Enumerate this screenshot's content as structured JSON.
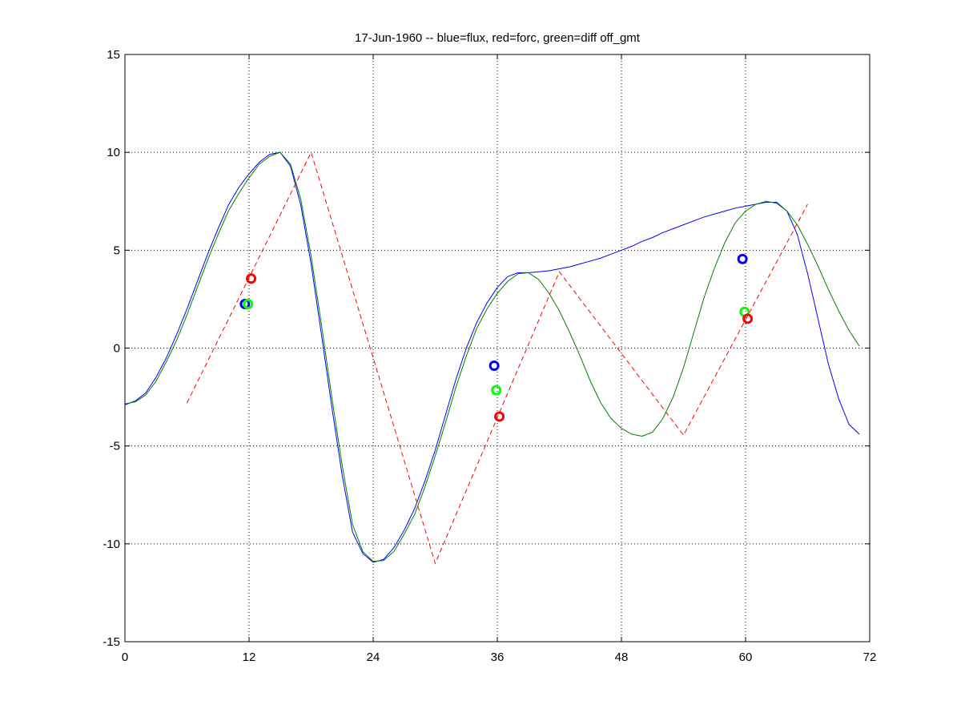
{
  "chart_data": {
    "type": "line",
    "title": "17-Jun-1960 -- blue=flux, red=forc, green=diff off_gmt",
    "xlabel": "",
    "ylabel": "",
    "xlim": [
      0,
      72
    ],
    "ylim": [
      -15,
      15
    ],
    "xticks": [
      0,
      12,
      24,
      36,
      48,
      60,
      72
    ],
    "yticks": [
      -15,
      -10,
      -5,
      0,
      5,
      10,
      15
    ],
    "xtick_labels": [
      "0",
      "12",
      "24",
      "36",
      "48",
      "60",
      "72"
    ],
    "ytick_labels": [
      "-15",
      "-10",
      "-5",
      "0",
      "5",
      "10",
      "15"
    ],
    "grid": true,
    "series": [
      {
        "name": "flux",
        "color": "#0000ff",
        "style": "solid",
        "x": [
          0,
          1,
          2,
          3,
          4,
          5,
          6,
          7,
          8,
          9,
          10,
          11,
          12,
          13,
          14,
          15,
          16,
          17,
          18,
          19,
          20,
          21,
          22,
          23,
          24,
          25,
          26,
          27,
          28,
          29,
          30,
          31,
          32,
          33,
          34,
          35,
          36,
          37,
          38,
          39,
          40,
          41,
          42,
          43,
          44,
          45,
          46,
          47,
          48,
          49,
          50,
          51,
          52,
          53,
          54,
          55,
          56,
          57,
          58,
          59,
          60,
          61,
          62,
          63,
          64,
          65,
          66,
          67,
          68,
          69,
          70,
          71
        ],
        "y": [
          -2.9,
          -2.7,
          -2.3,
          -1.5,
          -0.5,
          0.7,
          2.0,
          3.4,
          4.8,
          6.1,
          7.3,
          8.2,
          8.9,
          9.5,
          9.9,
          10.0,
          9.3,
          7.3,
          4.3,
          0.7,
          -3.0,
          -6.5,
          -9.4,
          -10.5,
          -10.95,
          -10.8,
          -10.2,
          -9.3,
          -8.2,
          -6.8,
          -5.2,
          -3.4,
          -1.6,
          0.0,
          1.3,
          2.3,
          3.1,
          3.65,
          3.85,
          3.85,
          3.9,
          3.95,
          4.05,
          4.15,
          4.3,
          4.45,
          4.6,
          4.8,
          5.0,
          5.2,
          5.45,
          5.65,
          5.9,
          6.1,
          6.3,
          6.5,
          6.7,
          6.85,
          7.0,
          7.15,
          7.25,
          7.35,
          7.45,
          7.45,
          7.0,
          5.8,
          3.8,
          1.5,
          -0.8,
          -2.6,
          -3.9,
          -4.4
        ]
      },
      {
        "name": "diff off_gmt",
        "color": "#008000",
        "style": "solid",
        "x": [
          0,
          1,
          2,
          3,
          4,
          5,
          6,
          7,
          8,
          9,
          10,
          11,
          12,
          13,
          14,
          15,
          16,
          17,
          18,
          19,
          20,
          21,
          22,
          23,
          24,
          25,
          26,
          27,
          28,
          29,
          30,
          31,
          32,
          33,
          34,
          35,
          36,
          37,
          38,
          39,
          40,
          41,
          42,
          43,
          44,
          45,
          46,
          47,
          48,
          49,
          50,
          51,
          52,
          53,
          54,
          55,
          56,
          57,
          58,
          59,
          60,
          61,
          62,
          63,
          64,
          65,
          66,
          67,
          68,
          69,
          70,
          71
        ],
        "y": [
          -2.85,
          -2.75,
          -2.4,
          -1.7,
          -0.7,
          0.4,
          1.7,
          3.1,
          4.5,
          5.8,
          7.0,
          7.9,
          8.7,
          9.4,
          9.8,
          10.0,
          9.4,
          7.6,
          4.7,
          1.2,
          -2.5,
          -6.0,
          -9.0,
          -10.4,
          -10.9,
          -10.85,
          -10.4,
          -9.5,
          -8.5,
          -7.1,
          -5.5,
          -3.8,
          -2.0,
          -0.4,
          1.0,
          2.0,
          2.8,
          3.4,
          3.8,
          3.85,
          3.5,
          2.8,
          1.9,
          0.8,
          -0.4,
          -1.7,
          -2.8,
          -3.6,
          -4.1,
          -4.4,
          -4.5,
          -4.3,
          -3.6,
          -2.5,
          -1.0,
          0.8,
          2.6,
          4.1,
          5.4,
          6.4,
          7.0,
          7.35,
          7.5,
          7.4,
          7.0,
          6.3,
          5.3,
          4.2,
          3.0,
          1.9,
          0.9,
          0.1
        ]
      },
      {
        "name": "forc",
        "color": "#ff0000",
        "style": "dashed",
        "x": [
          6,
          18,
          30,
          42,
          54,
          66
        ],
        "y": [
          -2.8,
          10.0,
          -11.0,
          3.9,
          -4.45,
          7.35
        ]
      }
    ],
    "markers": [
      {
        "name": "flux",
        "color": "#0000ff",
        "x": [
          11.6,
          35.7,
          59.7
        ],
        "y": [
          2.25,
          -0.9,
          4.55
        ]
      },
      {
        "name": "diff off_gmt",
        "color": "#00ff00",
        "x": [
          11.9,
          35.9,
          59.9
        ],
        "y": [
          2.25,
          -2.15,
          1.85
        ]
      },
      {
        "name": "forc",
        "color": "#ff0000",
        "x": [
          12.2,
          36.2,
          60.2
        ],
        "y": [
          3.55,
          -3.5,
          1.5
        ]
      }
    ]
  }
}
